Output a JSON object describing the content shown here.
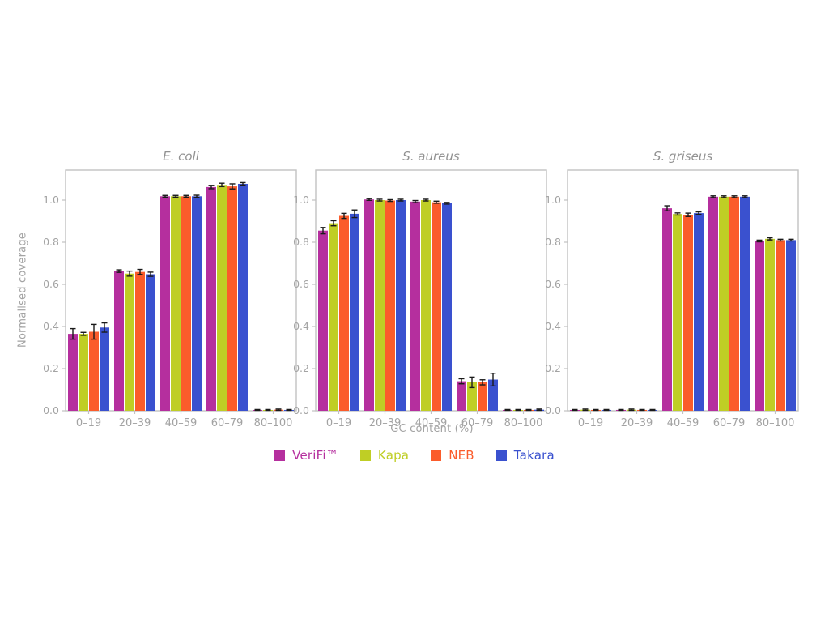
{
  "figure": {
    "ylabel": "Normalised coverage",
    "xlabel": "GC content (%)"
  },
  "chart_data": {
    "type": "bar",
    "categories": [
      "0–19",
      "20–39",
      "40–59",
      "60–79",
      "80–100"
    ],
    "xlabel": "GC content (%)",
    "ylabel": "Normalised coverage",
    "ylim": [
      0,
      1.14
    ],
    "yticks": [
      0.0,
      0.2,
      0.4,
      0.6,
      0.8,
      1.0
    ],
    "grid": false,
    "error_bars": true,
    "legend_position": "bottom",
    "series": [
      {
        "name": "VeriFi™",
        "color": "#b52f9e"
      },
      {
        "name": "Kapa",
        "color": "#bfce25"
      },
      {
        "name": "NEB",
        "color": "#fb5c2b"
      },
      {
        "name": "Takara",
        "color": "#3a51cf"
      }
    ],
    "panels": [
      {
        "title": "E. coli",
        "values": [
          [
            0.365,
            0.663,
            1.018,
            1.062,
            0.004
          ],
          [
            0.365,
            0.651,
            1.018,
            1.072,
            0.004
          ],
          [
            0.375,
            0.659,
            1.018,
            1.065,
            0.005
          ],
          [
            0.395,
            0.648,
            1.018,
            1.077,
            0.004
          ]
        ],
        "errors": [
          [
            0.025,
            0.006,
            0.004,
            0.008,
            0.002
          ],
          [
            0.007,
            0.012,
            0.004,
            0.008,
            0.002
          ],
          [
            0.035,
            0.012,
            0.004,
            0.012,
            0.003
          ],
          [
            0.022,
            0.01,
            0.005,
            0.006,
            0.002
          ]
        ]
      },
      {
        "title": "S. aureus",
        "values": [
          [
            0.855,
            1.003,
            0.993,
            0.14,
            0.004
          ],
          [
            0.89,
            1.0,
            1.0,
            0.135,
            0.004
          ],
          [
            0.925,
            0.998,
            0.99,
            0.135,
            0.004
          ],
          [
            0.935,
            1.0,
            0.985,
            0.148,
            0.005
          ]
        ],
        "errors": [
          [
            0.015,
            0.004,
            0.005,
            0.012,
            0.002
          ],
          [
            0.012,
            0.004,
            0.004,
            0.025,
            0.002
          ],
          [
            0.012,
            0.004,
            0.005,
            0.012,
            0.002
          ],
          [
            0.018,
            0.004,
            0.004,
            0.03,
            0.003
          ]
        ]
      },
      {
        "title": "S. griseus",
        "values": [
          [
            0.004,
            0.004,
            0.961,
            1.016,
            0.806
          ],
          [
            0.005,
            0.005,
            0.934,
            1.016,
            0.816
          ],
          [
            0.004,
            0.004,
            0.93,
            1.016,
            0.81
          ],
          [
            0.004,
            0.004,
            0.938,
            1.016,
            0.81
          ]
        ],
        "errors": [
          [
            0.002,
            0.002,
            0.012,
            0.004,
            0.004
          ],
          [
            0.003,
            0.003,
            0.005,
            0.004,
            0.005
          ],
          [
            0.002,
            0.002,
            0.008,
            0.004,
            0.004
          ],
          [
            0.002,
            0.002,
            0.006,
            0.004,
            0.004
          ]
        ]
      }
    ],
    "style": {
      "axis_color": "#c2c2c2",
      "tick_label_color": "#a3a3a3",
      "title_color": "#929292",
      "errorbar_color": "#1a1a1a"
    }
  }
}
